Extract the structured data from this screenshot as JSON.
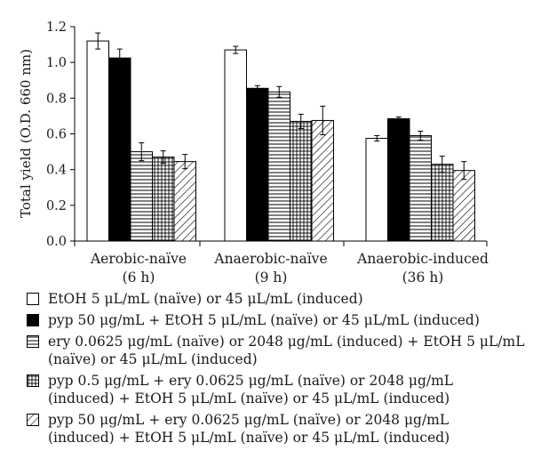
{
  "chart_data": {
    "type": "bar",
    "ylabel": "Total yield (O.D. 660 nm)",
    "ylim": [
      0,
      1.2
    ],
    "yticks": [
      "0.0",
      "0.2",
      "0.4",
      "0.6",
      "0.8",
      "1.0",
      "1.2"
    ],
    "categories": [
      {
        "line1": "Aerobic-naïve",
        "line2": "(6 h)"
      },
      {
        "line1": "Anaerobic-naïve",
        "line2": "(9 h)"
      },
      {
        "line1": "Anaerobic-induced",
        "line2": "(36 h)"
      }
    ],
    "series": [
      {
        "name": "EtOH 5 μL/mL (naïve) or 45 μL/mL (induced)",
        "pattern": "white",
        "values": [
          1.12,
          1.07,
          0.575
        ],
        "errors": [
          0.045,
          0.02,
          0.015
        ]
      },
      {
        "name": "pyp 50 μg/mL + EtOH 5 μL/mL (naïve) or 45 μL/mL (induced)",
        "pattern": "black",
        "values": [
          1.025,
          0.855,
          0.685
        ],
        "errors": [
          0.05,
          0.015,
          0.01
        ]
      },
      {
        "name": "ery 0.0625 μg/mL (naïve) or 2048 μg/mL (induced) + EtOH 5 μL/mL (naïve) or 45 μL/mL (induced)",
        "pattern": "horizontal",
        "values": [
          0.5,
          0.835,
          0.59
        ],
        "errors": [
          0.05,
          0.03,
          0.025
        ]
      },
      {
        "name": "pyp 0.5 μg/mL + ery 0.0625 μg/mL (naïve) or 2048 μg/mL (induced) + EtOH 5 μL/mL (naïve) or 45 μL/mL (induced)",
        "pattern": "grid",
        "values": [
          0.47,
          0.67,
          0.43
        ],
        "errors": [
          0.035,
          0.04,
          0.045
        ]
      },
      {
        "name": "pyp 50 μg/mL + ery 0.0625 μg/mL (naïve) or 2048 μg/mL (induced) + EtOH 5 μL/mL (naïve) or 45 μL/mL (induced)",
        "pattern": "diagonal",
        "values": [
          0.445,
          0.675,
          0.395
        ],
        "errors": [
          0.04,
          0.08,
          0.05
        ]
      }
    ],
    "grid": false,
    "legend_position": "bottom"
  },
  "legend": {
    "items": [
      {
        "line1": "EtOH 5 μL/mL (naïve) or 45 μL/mL (induced)",
        "line2": ""
      },
      {
        "line1": "pyp 50 μg/mL + EtOH 5 μL/mL (naïve) or 45 μL/mL (induced)",
        "line2": ""
      },
      {
        "line1": "ery 0.0625 μg/mL (naïve) or 2048 μg/mL (induced) + EtOH 5 μL/mL",
        "line2": "(naïve) or 45 μL/mL (induced)"
      },
      {
        "line1": "pyp 0.5 μg/mL + ery 0.0625 μg/mL (naïve) or 2048 μg/mL",
        "line2": "(induced) + EtOH 5 μL/mL (naïve) or 45 μL/mL (induced)"
      },
      {
        "line1": "pyp 50 μg/mL + ery 0.0625 μg/mL (naïve) or 2048 μg/mL",
        "line2": "(induced) + EtOH 5 μL/mL (naïve) or 45 μL/mL (induced)"
      }
    ]
  }
}
